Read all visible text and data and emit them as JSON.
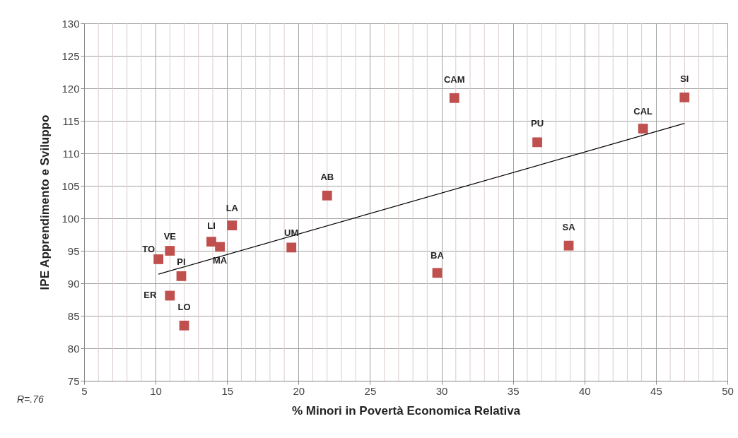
{
  "chart_data": {
    "type": "scatter",
    "xlabel": "% Minori in Povertà Economica Relativa",
    "ylabel": "IPE Apprendimento e Sviluppo",
    "xlim": [
      5,
      50
    ],
    "xticks": [
      5,
      10,
      15,
      20,
      25,
      30,
      35,
      40,
      45,
      50
    ],
    "ylim": [
      75,
      130
    ],
    "yticks": [
      75,
      80,
      85,
      90,
      95,
      100,
      105,
      110,
      115,
      120,
      125,
      130
    ],
    "grid": true,
    "series": [
      {
        "type": "scatter",
        "marker": "square",
        "color": "#c0504d",
        "x": [
          10.2,
          11.0,
          11.8,
          11.0,
          12.0,
          13.9,
          14.5,
          15.35,
          19.5,
          22.0,
          29.7,
          30.9,
          36.7,
          38.9,
          44.1,
          47.0
        ],
        "values": [
          93.7,
          95.0,
          91.1,
          88.1,
          83.5,
          96.4,
          95.6,
          98.9,
          95.5,
          103.5,
          91.6,
          118.5,
          111.7,
          95.8,
          113.8,
          118.6
        ]
      },
      {
        "type": "line",
        "marker": "none",
        "color": "#000000",
        "x": [
          10.2,
          47.0
        ],
        "values": [
          91.4,
          114.6
        ]
      }
    ],
    "annotations": [
      {
        "text": "TO",
        "x": 10.2,
        "y": 93.7
      },
      {
        "text": "VE",
        "x": 11.0,
        "y": 95.0
      },
      {
        "text": "PI",
        "x": 11.8,
        "y": 91.1
      },
      {
        "text": "ER",
        "x": 11.0,
        "y": 88.1
      },
      {
        "text": "LO",
        "x": 12.0,
        "y": 83.5
      },
      {
        "text": "LI",
        "x": 13.9,
        "y": 96.4
      },
      {
        "text": "MA",
        "x": 14.5,
        "y": 95.6
      },
      {
        "text": "LA",
        "x": 15.35,
        "y": 98.9
      },
      {
        "text": "UM",
        "x": 19.5,
        "y": 95.5
      },
      {
        "text": "AB",
        "x": 22.0,
        "y": 103.5
      },
      {
        "text": "BA",
        "x": 29.7,
        "y": 91.6
      },
      {
        "text": "CAM",
        "x": 30.9,
        "y": 118.5
      },
      {
        "text": "PU",
        "x": 36.7,
        "y": 111.7
      },
      {
        "text": "SA",
        "x": 38.9,
        "y": 95.8
      },
      {
        "text": "CAL",
        "x": 44.1,
        "y": 113.8
      },
      {
        "text": "SI",
        "x": 47.0,
        "y": 118.6
      },
      "R=.76"
    ]
  }
}
